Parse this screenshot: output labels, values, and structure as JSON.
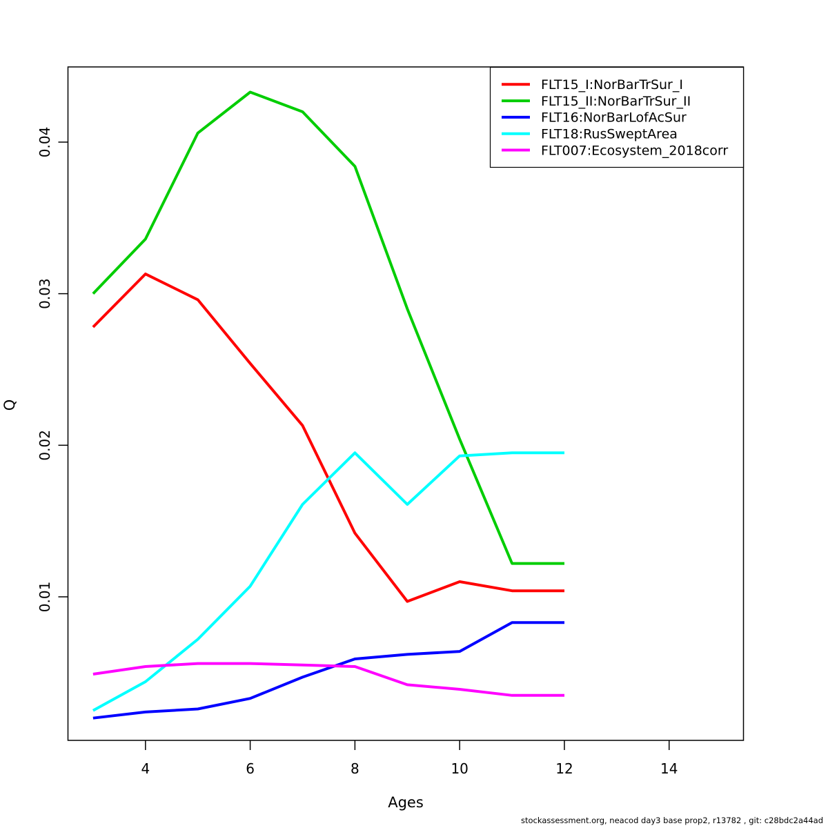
{
  "page": {
    "background": "#ffffff",
    "border_color": "#000000"
  },
  "footer": {
    "text": "stockassessment.org, neacod day3 base prop2, r13782 , git: c28bdc2a44ad"
  },
  "chart_data": {
    "type": "line",
    "title": "",
    "xlabel": "Ages",
    "ylabel": "Q",
    "grid": false,
    "legend_position": "topright",
    "x": [
      3,
      4,
      5,
      6,
      7,
      8,
      9,
      10,
      11,
      12
    ],
    "x_ticks": [
      4,
      6,
      8,
      10,
      12,
      14
    ],
    "x_tick_labels": [
      "4",
      "6",
      "8",
      "10",
      "12",
      "14"
    ],
    "y_ticks": [
      0.01,
      0.02,
      0.03,
      0.04
    ],
    "y_tick_labels": [
      "0.01",
      "0.02",
      "0.03",
      "0.04"
    ],
    "xlim": [
      2.52,
      15.42
    ],
    "ylim": [
      0.00053,
      0.04496
    ],
    "series": [
      {
        "name": "FLT15_I:NorBarTrSur_I",
        "color": "#FF0000",
        "values": [
          0.0278,
          0.0313,
          0.0296,
          0.0254,
          0.0213,
          0.0142,
          0.0097,
          0.011,
          0.0104,
          0.0104
        ]
      },
      {
        "name": "FLT15_II:NorBarTrSur_II",
        "color": "#00CD00",
        "values": [
          0.03,
          0.0336,
          0.0406,
          0.0433,
          0.042,
          0.0384,
          0.029,
          0.0204,
          0.0122,
          0.0122
        ]
      },
      {
        "name": "FLT16:NorBarLofAcSur",
        "color": "#0000FF",
        "values": [
          0.002,
          0.0024,
          0.0026,
          0.0033,
          0.0047,
          0.0059,
          0.0062,
          0.0064,
          0.0083,
          0.0083
        ]
      },
      {
        "name": "FLT18:RusSweptArea",
        "color": "#00FFFF",
        "values": [
          0.0025,
          0.0044,
          0.0072,
          0.0107,
          0.0161,
          0.0195,
          0.0161,
          0.0193,
          0.0195,
          0.0195
        ]
      },
      {
        "name": "FLT007:Ecosystem_2018corr",
        "color": "#FF00FF",
        "values": [
          0.0049,
          0.0054,
          0.0056,
          0.0056,
          0.0055,
          0.0054,
          0.0042,
          0.0039,
          0.0035,
          0.0035
        ]
      }
    ]
  }
}
